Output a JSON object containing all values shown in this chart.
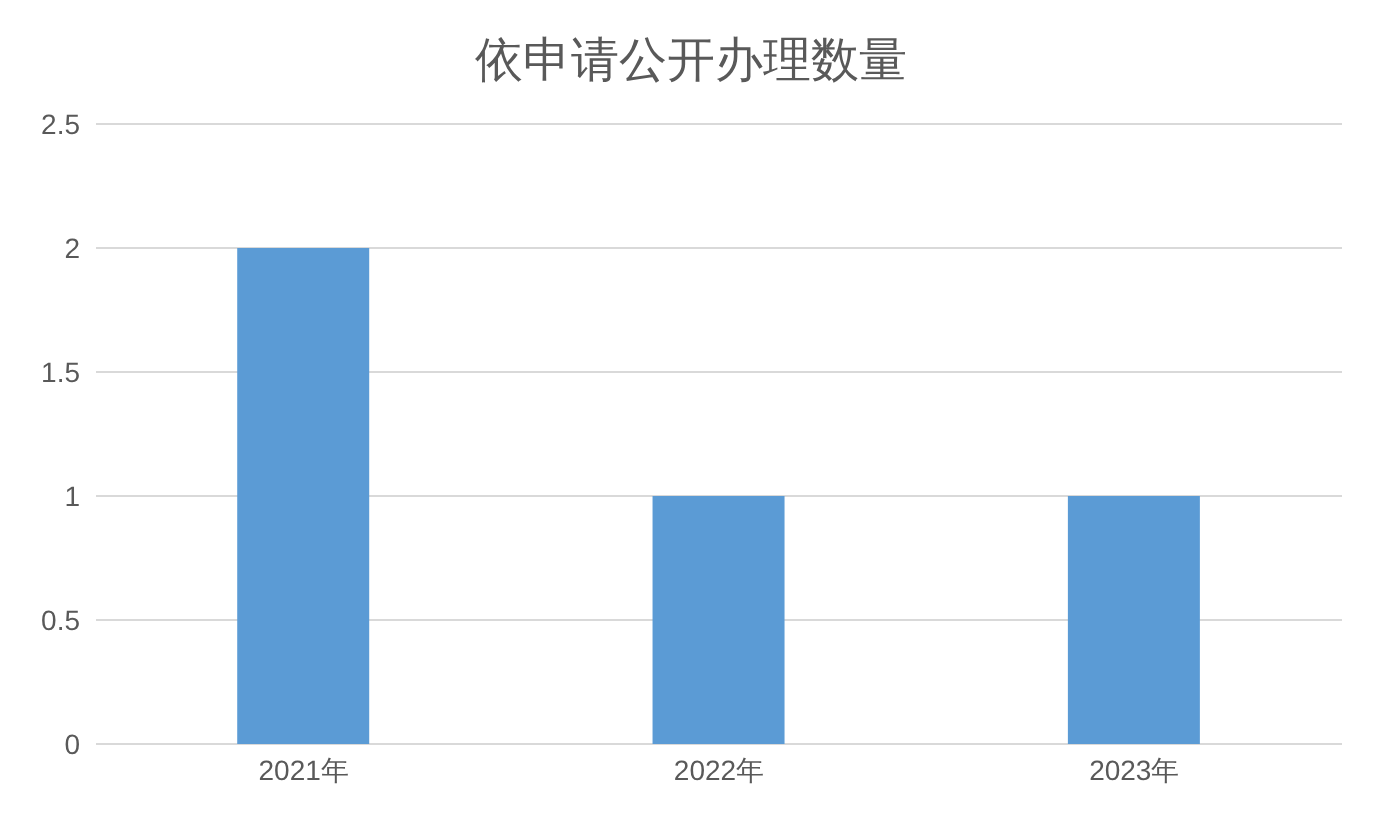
{
  "chart_data": {
    "type": "bar",
    "title": "依申请公开办理数量",
    "categories": [
      "2021年",
      "2022年",
      "2023年"
    ],
    "values": [
      2,
      1,
      1
    ],
    "color": "#5b9bd5",
    "ylim": [
      0,
      2.5
    ],
    "yticks": [
      0,
      0.5,
      1,
      1.5,
      2,
      2.5
    ],
    "grid": "y"
  }
}
